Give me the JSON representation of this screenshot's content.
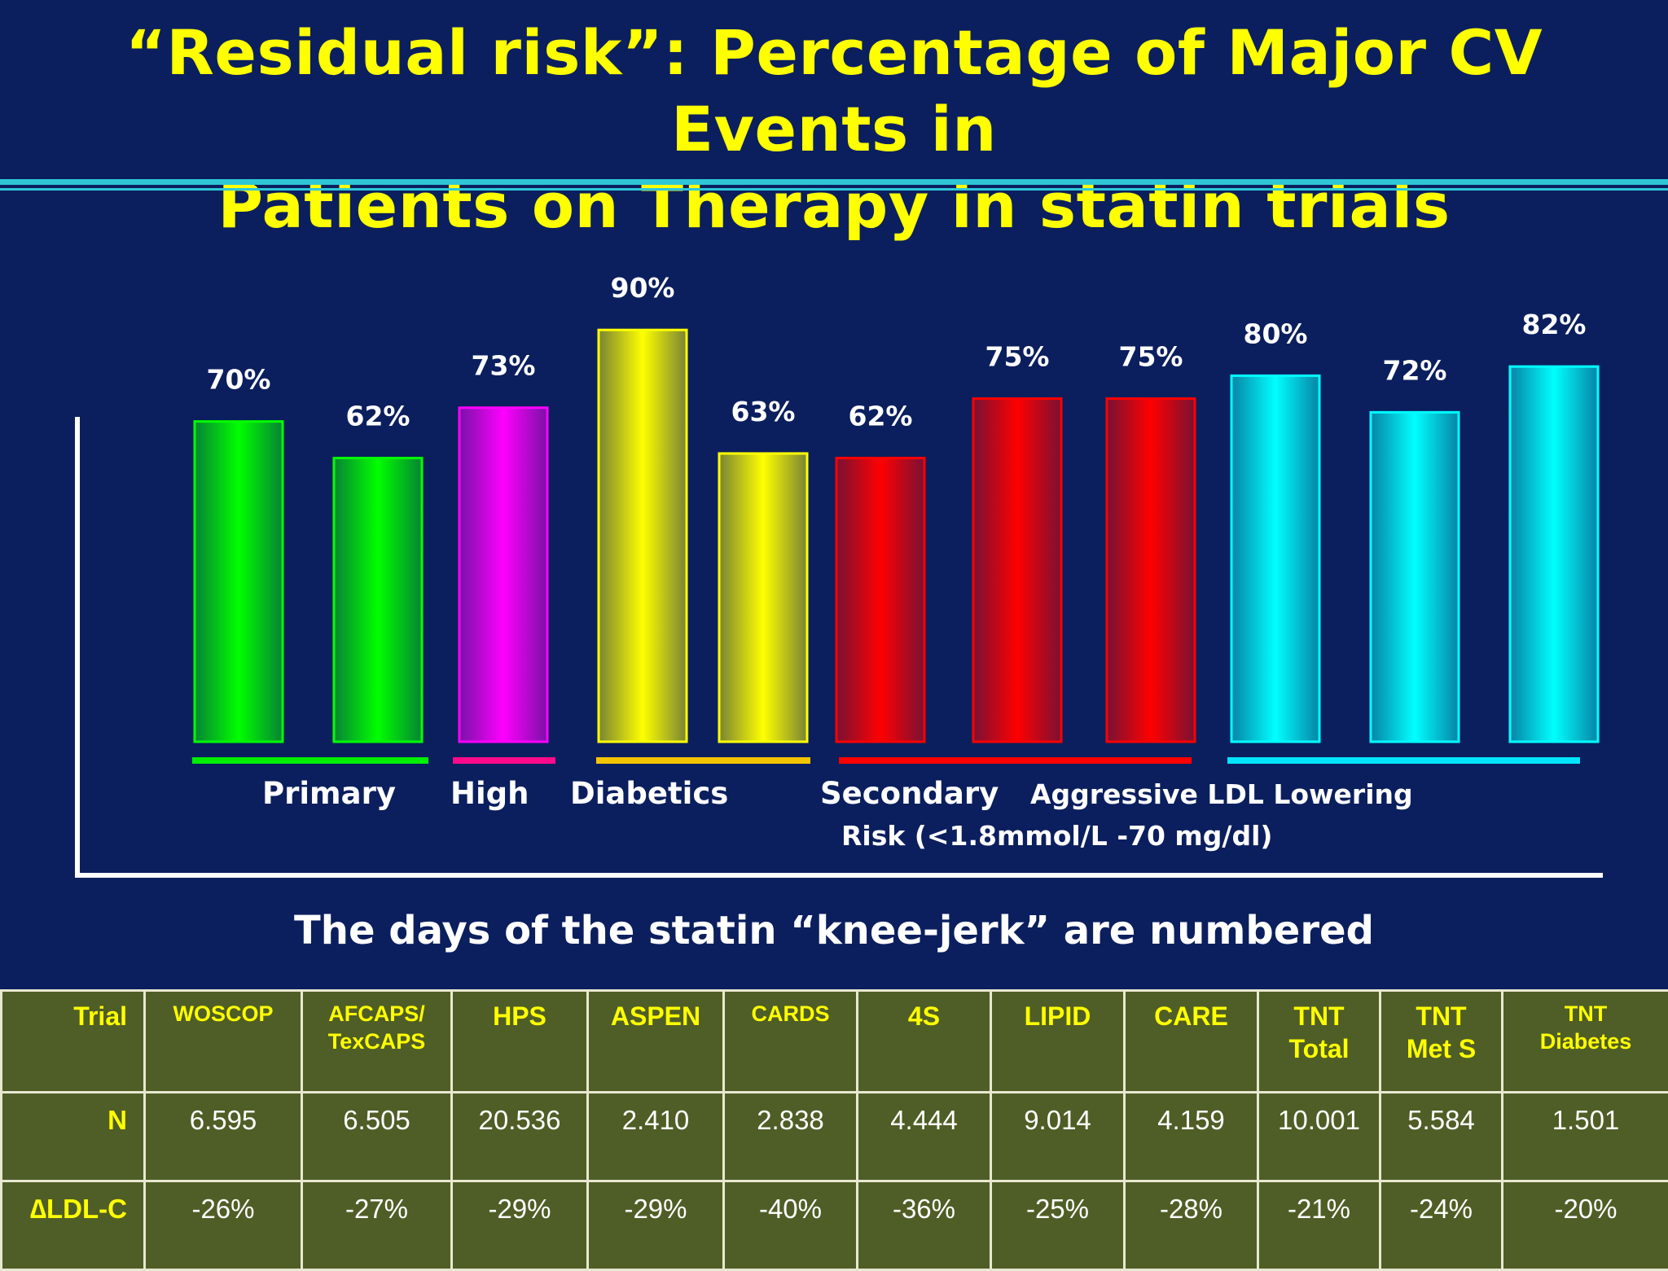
{
  "title_line1": "“Residual risk”: Percentage of Major CV Events in",
  "title_line2": "Patients on Therapy in statin trials",
  "subtitle": "The days of the statin “knee-jerk” are numbered",
  "colors": {
    "background": "#0b1f5e",
    "title": "#ffff00",
    "primary": "#00ff00",
    "high_risk": "#ff00ff",
    "diabetics": "#ffff00",
    "secondary": "#ff0000",
    "aggressive": "#00ffff",
    "table_bg": "#4f5e26"
  },
  "chart_data": {
    "type": "bar",
    "categories": [
      "WOSCOP",
      "AFCAPS/TexCAPS",
      "HPS",
      "ASPEN",
      "CARDS",
      "4S",
      "LIPID",
      "CARE",
      "TNT Total",
      "TNT Met S",
      "TNT Diabetes"
    ],
    "values": [
      70,
      62,
      73,
      90,
      63,
      62,
      75,
      75,
      80,
      72,
      82
    ],
    "value_labels": [
      "70%",
      "62%",
      "73%",
      "90%",
      "63%",
      "62%",
      "75%",
      "75%",
      "80%",
      "72%",
      "82%"
    ],
    "bar_groups": [
      "primary",
      "primary",
      "high_risk",
      "diabetics",
      "diabetics",
      "secondary",
      "secondary",
      "secondary",
      "aggressive",
      "aggressive",
      "aggressive"
    ],
    "ylim": [
      0,
      100
    ],
    "grid": false,
    "group_labels": {
      "primary": "Primary",
      "high_risk": "High",
      "diabetics": "Diabetics",
      "secondary": "Secondary",
      "aggressive": "Aggressive LDL Lowering",
      "risk_note": "Risk (<1.8mmol/L -70 mg/dl)"
    }
  },
  "table": {
    "header_label": "Trial",
    "columns": [
      [
        "WOSCOP"
      ],
      [
        "AFCAPS/",
        "TexCAPS"
      ],
      [
        "HPS"
      ],
      [
        "ASPEN"
      ],
      [
        "CARDS"
      ],
      [
        "4S"
      ],
      [
        "LIPID"
      ],
      [
        "CARE"
      ],
      [
        "TNT",
        "Total"
      ],
      [
        "TNT",
        "Met S"
      ],
      [
        "TNT",
        "Diabetes"
      ]
    ],
    "rows": [
      {
        "label": "N",
        "values": [
          "6.595",
          "6.505",
          "20.536",
          "2.410",
          "2.838",
          "4.444",
          "9.014",
          "4.159",
          "10.001",
          "5.584",
          "1.501"
        ]
      },
      {
        "label": "∆LDL-C",
        "values": [
          "-26%",
          "-27%",
          "-29%",
          "-29%",
          "-40%",
          "-36%",
          "-25%",
          "-28%",
          "-21%",
          "-24%",
          "-20%"
        ]
      }
    ]
  }
}
